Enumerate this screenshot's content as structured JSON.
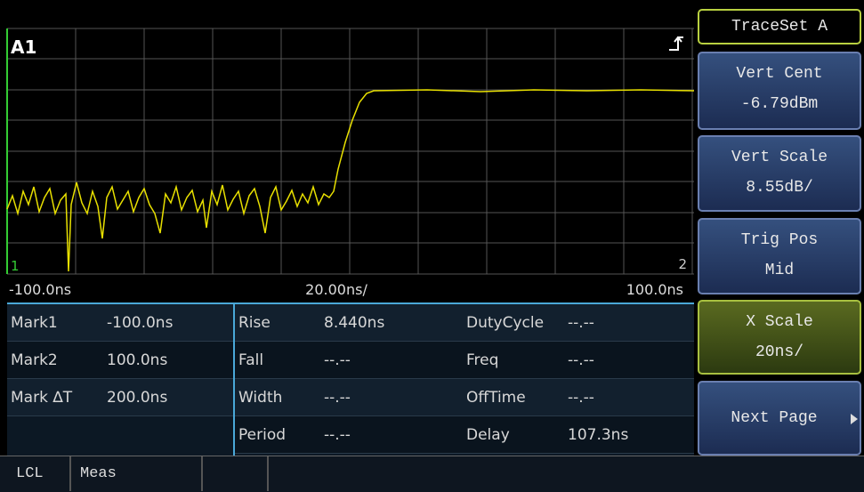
{
  "plot": {
    "channel": "A1",
    "marker_left": "1",
    "marker_right": "2",
    "x_start": "-100.0ns",
    "x_scale": "20.00ns/",
    "x_end": "100.0ns"
  },
  "measurements": {
    "columns": [
      [
        {
          "label": "Mark1",
          "value": "-100.0ns"
        },
        {
          "label": "Mark2",
          "value": "100.0ns"
        },
        {
          "label": "Mark ∆T",
          "value": "200.0ns"
        }
      ],
      [
        {
          "label": "Rise",
          "value": "8.440ns"
        },
        {
          "label": "Fall",
          "value": "--.--"
        },
        {
          "label": "Width",
          "value": "--.--"
        },
        {
          "label": "Period",
          "value": "--.--"
        }
      ],
      [
        {
          "label": "DutyCycle",
          "value": "--.--"
        },
        {
          "label": "Freq",
          "value": "--.--"
        },
        {
          "label": "OffTime",
          "value": "--.--"
        },
        {
          "label": "Delay",
          "value": "107.3ns"
        }
      ]
    ]
  },
  "softkeys": [
    {
      "title": "TraceSet A"
    },
    {
      "title": "Vert Cent",
      "value": "-6.79dBm"
    },
    {
      "title": "Vert Scale",
      "value": "8.55dB/"
    },
    {
      "title": "Trig Pos",
      "value": "Mid"
    },
    {
      "title": "X Scale",
      "value": "20ns/"
    },
    {
      "title": "Next Page"
    }
  ],
  "status": [
    "LCL",
    "Meas"
  ]
}
